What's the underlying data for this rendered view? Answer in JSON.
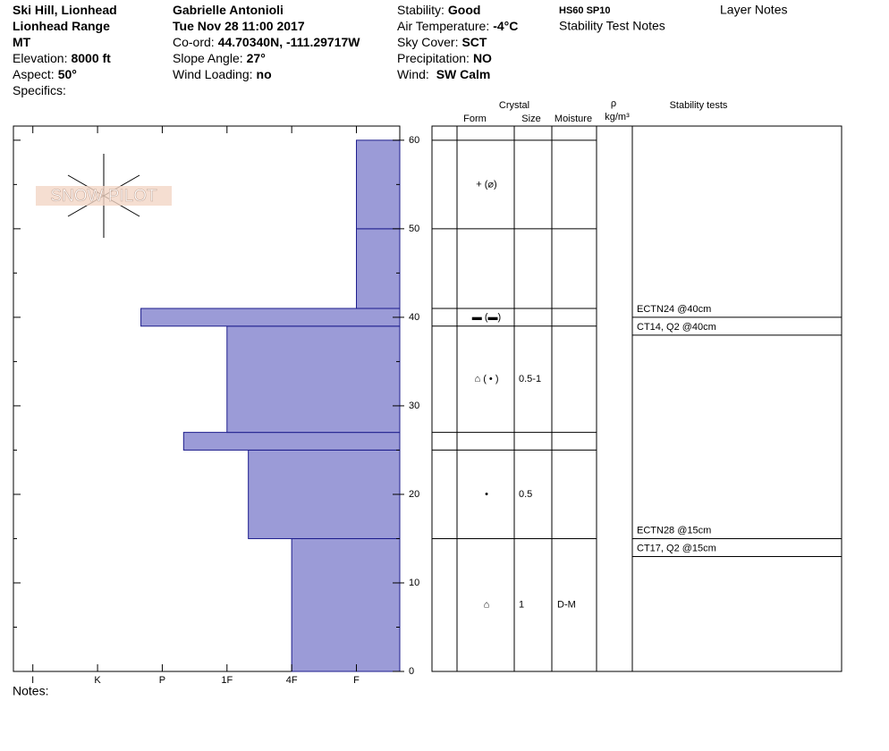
{
  "header": {
    "col1": [
      {
        "value": "Ski Hill, Lionhead"
      },
      {
        "value": "Lionhead Range"
      },
      {
        "value": "MT"
      },
      {
        "label": "Elevation:",
        "value": "8000 ft"
      },
      {
        "label": "Aspect:",
        "value": "50°"
      },
      {
        "label": "Specifics:"
      }
    ],
    "col2": [
      {
        "value": "Gabrielle Antonioli"
      },
      {
        "value": "Tue Nov 28 11:00 2017"
      },
      {
        "label": "Co-ord:",
        "value": "44.70340N, -111.29717W"
      },
      {
        "label": "Slope Angle:",
        "value": "27°"
      },
      {
        "label": "Wind Loading:",
        "value": "no"
      }
    ],
    "col3": [
      {
        "label": "Stability:",
        "value": "Good"
      },
      {
        "label": "Air Temperature:",
        "value": "-4°C"
      },
      {
        "label": "Sky Cover:",
        "value": "SCT"
      },
      {
        "label": "Precipitation:",
        "value": "NO"
      },
      {
        "label": "Wind: ",
        "value": "SW Calm"
      }
    ],
    "snow_depth": "HS60 SP10",
    "stability_test_notes": "Stability Test Notes",
    "layer_notes": "Layer Notes"
  },
  "logo": "SNOW PILOT",
  "notes": "Notes:",
  "table_headers": {
    "crystal": "Crystal",
    "form": "Form",
    "size": "Size",
    "moisture": "Moisture",
    "density_symbol": "ρ",
    "density_unit": "kg/m³",
    "stability": "Stability tests"
  },
  "chart_data": {
    "type": "hardness-profile",
    "xlim": [
      -0.3,
      5.67
    ],
    "xticks": [
      {
        "value": 0,
        "label": "I"
      },
      {
        "value": 1,
        "label": "K"
      },
      {
        "value": 2,
        "label": "P"
      },
      {
        "value": 3,
        "label": "1F"
      },
      {
        "value": 4,
        "label": "4F"
      },
      {
        "value": 5,
        "label": "F"
      }
    ],
    "ylim": [
      0,
      61.6
    ],
    "yticks": [
      0,
      10,
      20,
      30,
      40,
      50,
      60
    ],
    "minor_yticks": [
      5,
      15,
      25,
      35,
      45,
      55
    ],
    "color": "#9b9bd7",
    "layers": [
      {
        "bottom": 0,
        "top": 15,
        "hardness": 4,
        "form": "⌂",
        "size": "1",
        "moisture": "D-M"
      },
      {
        "bottom": 15,
        "top": 25,
        "hardness": 3.33,
        "form": "•",
        "size": "0.5"
      },
      {
        "bottom": 25,
        "top": 27,
        "hardness": 2.33
      },
      {
        "bottom": 27,
        "top": 39,
        "hardness": 3,
        "form": "⌂ ( • )",
        "size": "0.5-1"
      },
      {
        "bottom": 39,
        "top": 41,
        "hardness": 1.67,
        "form": "▬ (▬)"
      },
      {
        "bottom": 41,
        "top": 50,
        "hardness": 5
      },
      {
        "bottom": 50,
        "top": 60,
        "hardness": 5,
        "form": "+ (⌀)"
      }
    ],
    "stability_tests": [
      {
        "height": 40,
        "results": [
          "ECTN24 @40cm",
          "CT14, Q2 @40cm"
        ]
      },
      {
        "height": 15,
        "results": [
          "ECTN28 @15cm",
          "CT17, Q2 @15cm"
        ]
      }
    ]
  }
}
